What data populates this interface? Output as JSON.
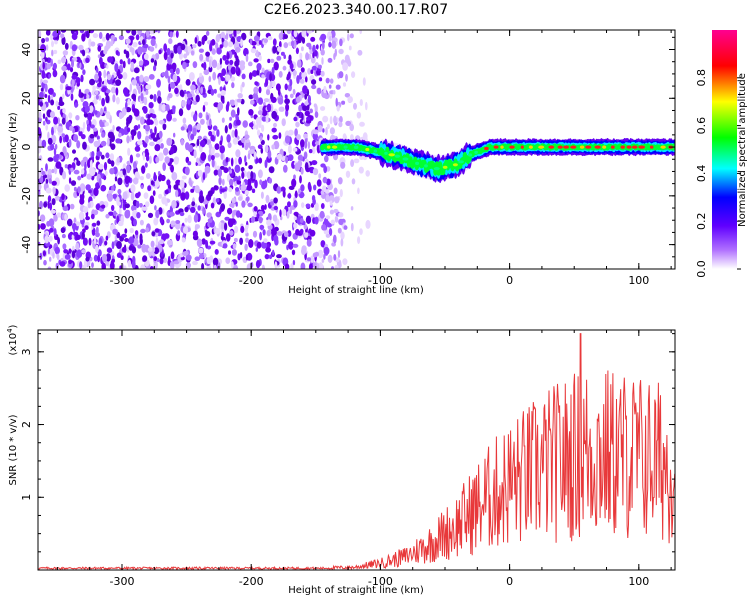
{
  "title": "C2E6.2023.340.00.17.R07",
  "chart_data": [
    {
      "type": "heatmap",
      "name": "spectrogram",
      "xlabel": "Height of straight line (km)",
      "ylabel": "Frequency (Hz)",
      "xlim": [
        -365,
        128
      ],
      "ylim": [
        -50,
        48
      ],
      "xticks": [
        -300,
        -200,
        -100,
        0,
        100
      ],
      "yticks": [
        -40,
        -20,
        0,
        20,
        40
      ],
      "colorbar": {
        "label": "Normalized spectral amplitude",
        "range": [
          0.0,
          1.0
        ],
        "ticks": [
          "0.0",
          "0.2",
          "0.4",
          "0.6",
          "0.8"
        ],
        "colormap": [
          "#ffffff",
          "#7a00ff",
          "#0000ff",
          "#00ffff",
          "#00ff00",
          "#ffff00",
          "#ff0000",
          "#ff00a0"
        ]
      },
      "noise_region_x": [
        -365,
        -140
      ],
      "signal_track": [
        {
          "x": -145,
          "y": 0
        },
        {
          "x": -120,
          "y": 0
        },
        {
          "x": -100,
          "y": -2
        },
        {
          "x": -85,
          "y": -4
        },
        {
          "x": -70,
          "y": -7
        },
        {
          "x": -55,
          "y": -9
        },
        {
          "x": -40,
          "y": -7
        },
        {
          "x": -30,
          "y": -3
        },
        {
          "x": -15,
          "y": 0
        },
        {
          "x": 0,
          "y": 0
        },
        {
          "x": 128,
          "y": 0
        }
      ]
    },
    {
      "type": "line",
      "name": "snr",
      "xlabel": "Height of straight line (km)",
      "ylabel": "SNR (10 * v/v)",
      "yscale_label": "(x10",
      "yscale_exp": "4",
      "xlim": [
        -365,
        128
      ],
      "ylim": [
        0,
        3.3
      ],
      "xticks": [
        -300,
        -200,
        -100,
        0,
        100
      ],
      "yticks": [
        1,
        2,
        3
      ],
      "color": "#e8383a",
      "envelope": [
        {
          "x": -365,
          "y": 0.03
        },
        {
          "x": -150,
          "y": 0.04
        },
        {
          "x": -120,
          "y": 0.06
        },
        {
          "x": -100,
          "y": 0.15
        },
        {
          "x": -80,
          "y": 0.3
        },
        {
          "x": -60,
          "y": 0.6
        },
        {
          "x": -40,
          "y": 1.0
        },
        {
          "x": -20,
          "y": 1.5
        },
        {
          "x": 0,
          "y": 1.9
        },
        {
          "x": 30,
          "y": 2.3
        },
        {
          "x": 60,
          "y": 2.6
        },
        {
          "x": 100,
          "y": 2.5
        },
        {
          "x": 128,
          "y": 2.3
        }
      ],
      "peak": {
        "x": 55,
        "y": 3.25
      }
    }
  ]
}
